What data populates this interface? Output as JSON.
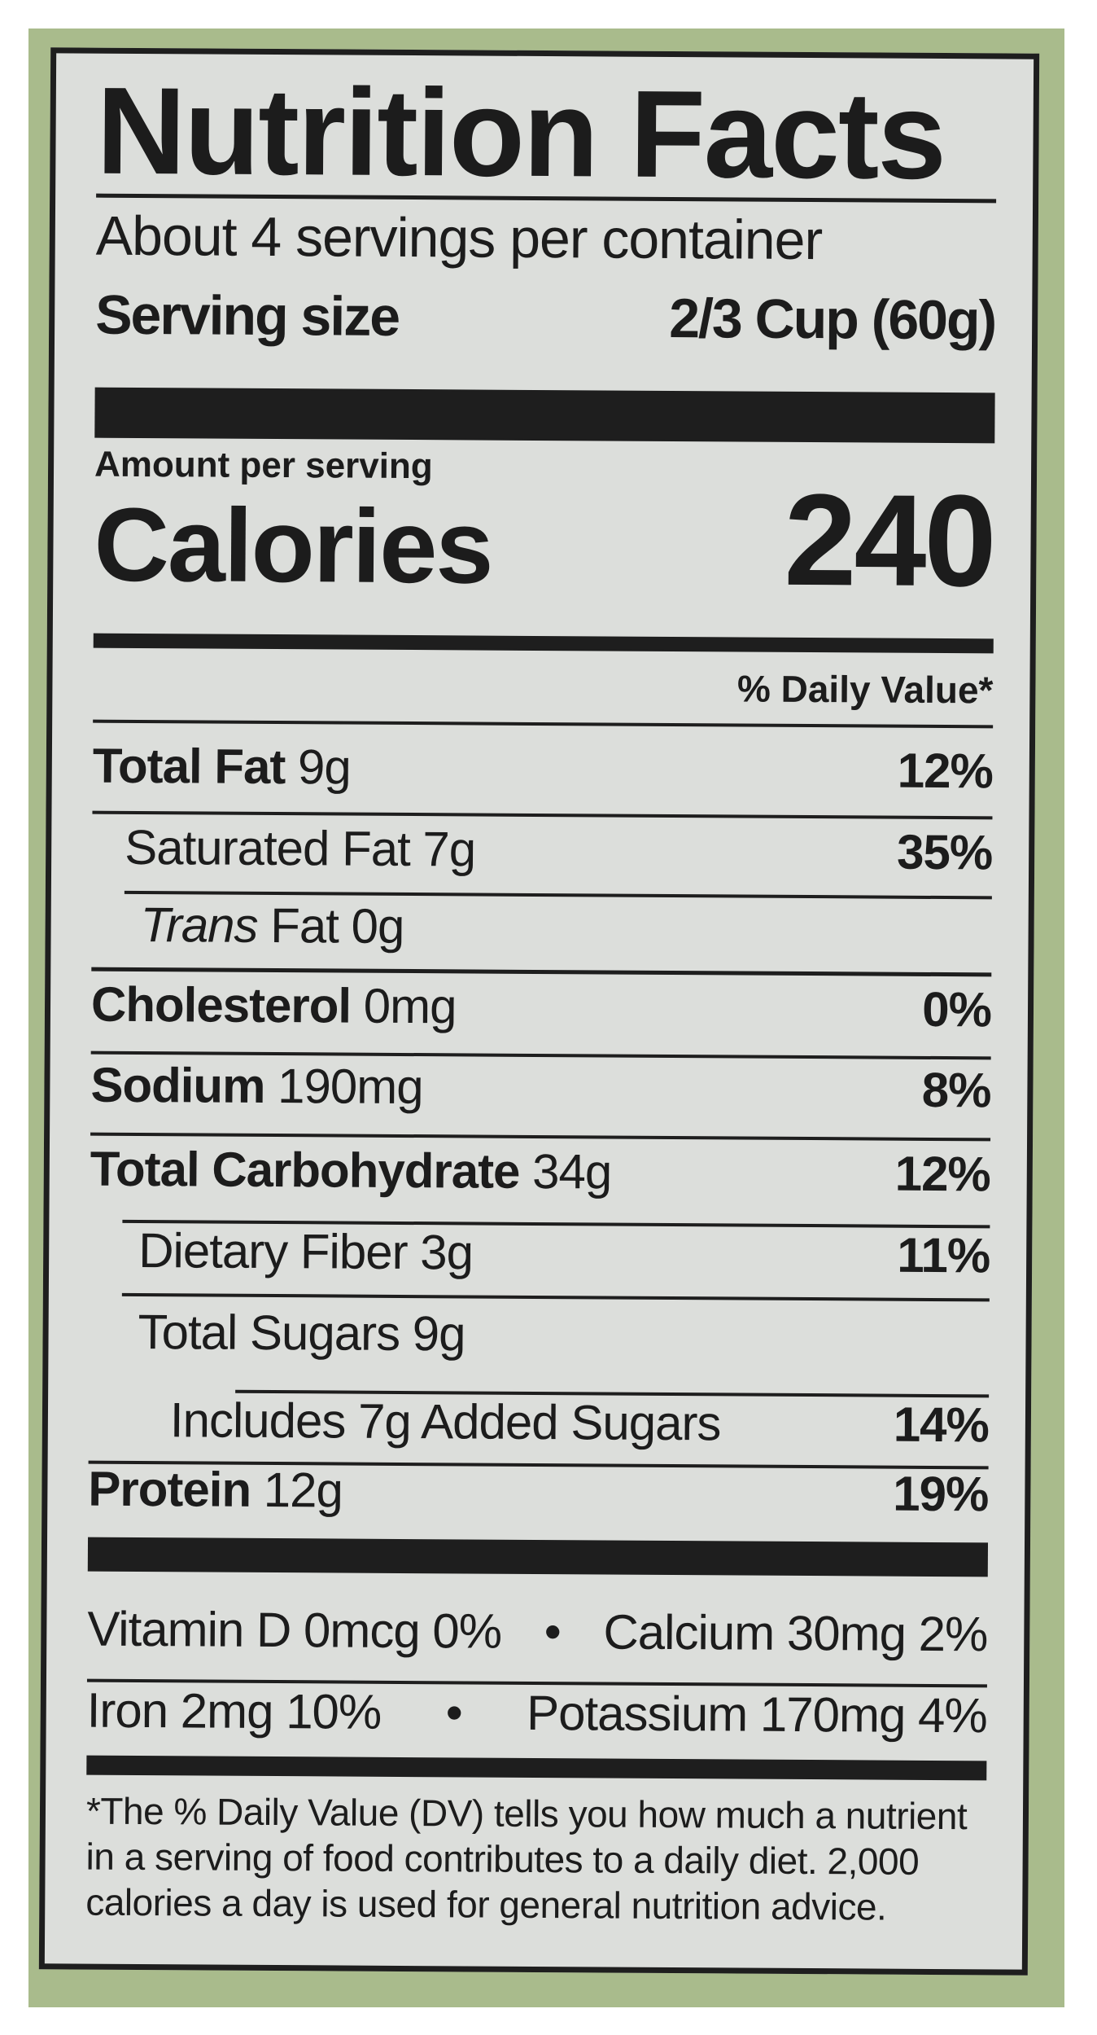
{
  "title": "Nutrition Facts",
  "servings_per_container": "About 4 servings per container",
  "serving_size_label": "Serving size",
  "serving_size_value": "2/3 Cup (60g)",
  "amount_per_serving": "Amount per serving",
  "calories_label": "Calories",
  "calories_value": "240",
  "daily_value_header": "% Daily Value*",
  "nutrients": [
    {
      "name": "Total Fat",
      "amount": "9g",
      "dv": "12%"
    },
    {
      "name": "Saturated Fat",
      "amount": "7g",
      "dv": "35%"
    },
    {
      "name": "Trans",
      "name_suffix": "Fat",
      "amount": "0g",
      "dv": ""
    },
    {
      "name": "Cholesterol",
      "amount": "0mg",
      "dv": "0%"
    },
    {
      "name": "Sodium",
      "amount": "190mg",
      "dv": "8%"
    },
    {
      "name": "Total Carbohydrate",
      "amount": "34g",
      "dv": "12%"
    },
    {
      "name": "Dietary Fiber",
      "amount": "3g",
      "dv": "11%"
    },
    {
      "name": "Total Sugars",
      "amount": "9g",
      "dv": ""
    },
    {
      "name": "Includes 7g Added Sugars",
      "amount": "",
      "dv": "14%"
    },
    {
      "name": "Protein",
      "amount": "12g",
      "dv": "19%"
    }
  ],
  "micros": [
    {
      "left": "Vitamin D 0mcg 0%",
      "bullet": "•",
      "right": "Calcium 30mg 2%"
    },
    {
      "left": "Iron 2mg 10%",
      "bullet": "•",
      "right": "Potassium 170mg 4%"
    }
  ],
  "footnote": [
    "*The % Daily Value (DV) tells you how much a nutrient",
    "in a serving of food contributes to a daily diet. 2,000",
    "calories a day is used for general nutrition advice."
  ],
  "colors": {
    "background": "#a9bb8c",
    "label": "#dcdedb",
    "ink": "#1e1e1e"
  }
}
